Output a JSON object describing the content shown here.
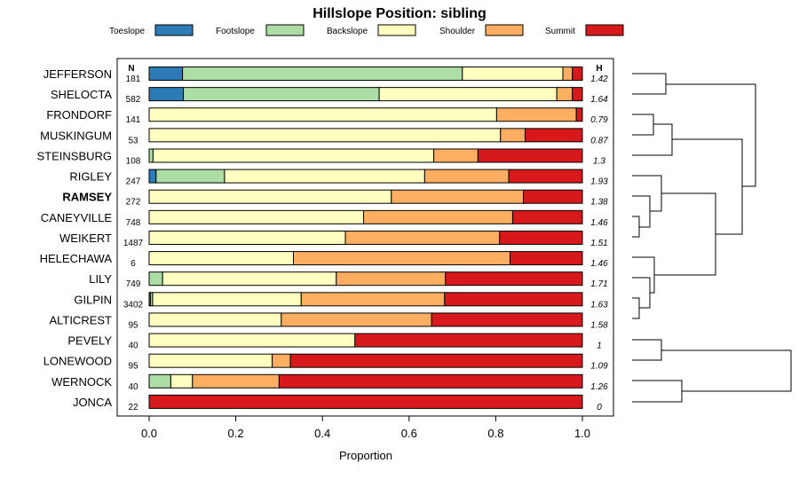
{
  "chart_data": {
    "type": "bar",
    "orientation": "horizontal",
    "stacked": true,
    "title": "Hillslope Position: sibling",
    "xlabel": "Proportion",
    "xlim": [
      0,
      1
    ],
    "xticks": [
      "0.0",
      "0.2",
      "0.4",
      "0.6",
      "0.8",
      "1.0"
    ],
    "n_header": "N",
    "h_header": "H",
    "legend": [
      {
        "name": "Toeslope",
        "color": "#2C7BB6"
      },
      {
        "name": "Footslope",
        "color": "#ABDDA4"
      },
      {
        "name": "Backslope",
        "color": "#FFFFBF"
      },
      {
        "name": "Shoulder",
        "color": "#FDAE61"
      },
      {
        "name": "Summit",
        "color": "#D7191C"
      }
    ],
    "rows": [
      {
        "name": "JEFFERSON",
        "n": "181",
        "h": "1.42",
        "bold": false,
        "values": [
          0.077,
          0.646,
          0.232,
          0.022,
          0.023
        ]
      },
      {
        "name": "SHELOCTA",
        "n": "582",
        "h": "1.64",
        "bold": false,
        "values": [
          0.079,
          0.452,
          0.41,
          0.036,
          0.023
        ]
      },
      {
        "name": "FRONDORF",
        "n": "141",
        "h": "0.79",
        "bold": false,
        "values": [
          0,
          0,
          0.802,
          0.184,
          0.014
        ]
      },
      {
        "name": "MUSKINGUM",
        "n": "53",
        "h": "0.87",
        "bold": false,
        "values": [
          0,
          0,
          0.811,
          0.057,
          0.132
        ]
      },
      {
        "name": "STEINSBURG",
        "n": "108",
        "h": "1.3",
        "bold": false,
        "values": [
          0,
          0.009,
          0.648,
          0.102,
          0.241
        ]
      },
      {
        "name": "RIGLEY",
        "n": "247",
        "h": "1.93",
        "bold": false,
        "values": [
          0.016,
          0.158,
          0.462,
          0.194,
          0.17
        ]
      },
      {
        "name": "RAMSEY",
        "n": "272",
        "h": "1.38",
        "bold": true,
        "values": [
          0,
          0,
          0.559,
          0.305,
          0.136
        ]
      },
      {
        "name": "CANEYVILLE",
        "n": "748",
        "h": "1.46",
        "bold": false,
        "values": [
          0,
          0,
          0.495,
          0.344,
          0.161
        ]
      },
      {
        "name": "WEIKERT",
        "n": "1487",
        "h": "1.51",
        "bold": false,
        "values": [
          0,
          0,
          0.453,
          0.356,
          0.191
        ]
      },
      {
        "name": "HELECHAWA",
        "n": "6",
        "h": "1.46",
        "bold": false,
        "values": [
          0,
          0,
          0.333,
          0.5,
          0.167
        ]
      },
      {
        "name": "LILY",
        "n": "749",
        "h": "1.71",
        "bold": false,
        "values": [
          0,
          0.031,
          0.401,
          0.252,
          0.316
        ]
      },
      {
        "name": "GILPIN",
        "n": "3402",
        "h": "1.63",
        "bold": false,
        "values": [
          0.003,
          0.005,
          0.343,
          0.331,
          0.318
        ]
      },
      {
        "name": "ALTICREST",
        "n": "95",
        "h": "1.58",
        "bold": false,
        "values": [
          0,
          0,
          0.305,
          0.347,
          0.348
        ]
      },
      {
        "name": "PEVELY",
        "n": "40",
        "h": "1",
        "bold": false,
        "values": [
          0,
          0,
          0.475,
          0,
          0.525
        ]
      },
      {
        "name": "LONEWOOD",
        "n": "95",
        "h": "1.09",
        "bold": false,
        "values": [
          0,
          0,
          0.284,
          0.042,
          0.674
        ]
      },
      {
        "name": "WERNOCK",
        "n": "40",
        "h": "1.26",
        "bold": false,
        "values": [
          0,
          0.05,
          0.05,
          0.2,
          0.7
        ]
      },
      {
        "name": "JONCA",
        "n": "22",
        "h": "0",
        "bold": false,
        "values": [
          0,
          0,
          0,
          0,
          1
        ]
      }
    ]
  }
}
